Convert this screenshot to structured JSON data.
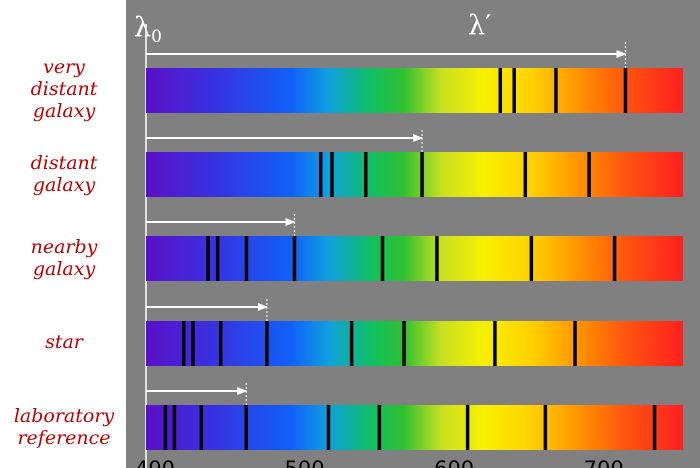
{
  "rows": [
    {
      "label_lines": [
        "very",
        "distant",
        "galaxy"
      ],
      "shift": 1.55
    },
    {
      "label_lines": [
        "distant",
        "galaxy"
      ],
      "shift": 1.255
    },
    {
      "label_lines": [
        "nearby",
        "galaxy"
      ],
      "shift": 1.07
    },
    {
      "label_lines": [
        "star"
      ],
      "shift": 1.03
    },
    {
      "label_lines": [
        "laboratory",
        "reference"
      ],
      "shift": 1.0
    }
  ],
  "lab_lines_nm": [
    407,
    413,
    431,
    461,
    516,
    550,
    609,
    661,
    734
  ],
  "symbols": {
    "lambda0_base": "λ",
    "lambda0_sub": "0",
    "lambda_prime": "λ′"
  },
  "axis": {
    "ticks": [
      400,
      500,
      600,
      700
    ],
    "min": 394,
    "max": 753
  },
  "colors": {
    "background": "#808080",
    "label": "#c00000",
    "arrow": "#ffffff"
  }
}
